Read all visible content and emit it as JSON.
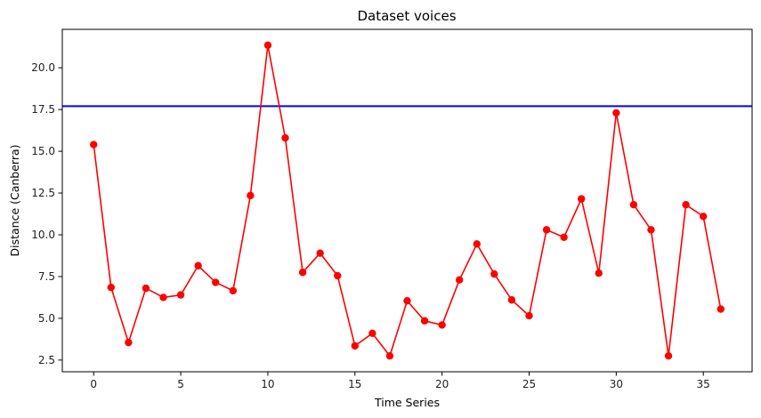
{
  "chart_data": {
    "type": "line",
    "title": "Dataset voices",
    "xlabel": "Time Series",
    "ylabel": "Distance (Canberra)",
    "xlim": [
      -1.8,
      37.8
    ],
    "ylim": [
      1.8,
      22.3
    ],
    "xticks": [
      0,
      5,
      10,
      15,
      20,
      25,
      30,
      35
    ],
    "xtick_labels": [
      "0",
      "5",
      "10",
      "15",
      "20",
      "25",
      "30",
      "35"
    ],
    "yticks": [
      2.5,
      5.0,
      7.5,
      10.0,
      12.5,
      15.0,
      17.5,
      20.0
    ],
    "ytick_labels": [
      "2.5",
      "5.0",
      "7.5",
      "10.0",
      "12.5",
      "15.0",
      "17.5",
      "20.0"
    ],
    "grid": false,
    "series": [
      {
        "color": "#ff0000",
        "marker": "circle",
        "x": [
          0,
          1,
          2,
          3,
          4,
          5,
          6,
          7,
          8,
          9,
          10,
          11,
          12,
          13,
          14,
          15,
          16,
          17,
          18,
          19,
          20,
          21,
          22,
          23,
          24,
          25,
          26,
          27,
          28,
          29,
          30,
          31,
          32,
          33,
          34,
          35,
          36
        ],
        "values": [
          15.4,
          6.85,
          3.55,
          6.8,
          6.25,
          6.4,
          8.15,
          7.15,
          6.65,
          12.35,
          21.35,
          15.8,
          7.75,
          8.9,
          7.55,
          3.35,
          4.1,
          2.75,
          6.05,
          4.85,
          4.6,
          7.3,
          9.45,
          7.65,
          6.1,
          5.15,
          10.3,
          9.85,
          12.15,
          7.7,
          17.3,
          11.8,
          10.3,
          2.75,
          11.8,
          11.1,
          5.55
        ]
      }
    ],
    "hlines": [
      {
        "y": 17.7,
        "color": "#0000ff"
      }
    ]
  }
}
